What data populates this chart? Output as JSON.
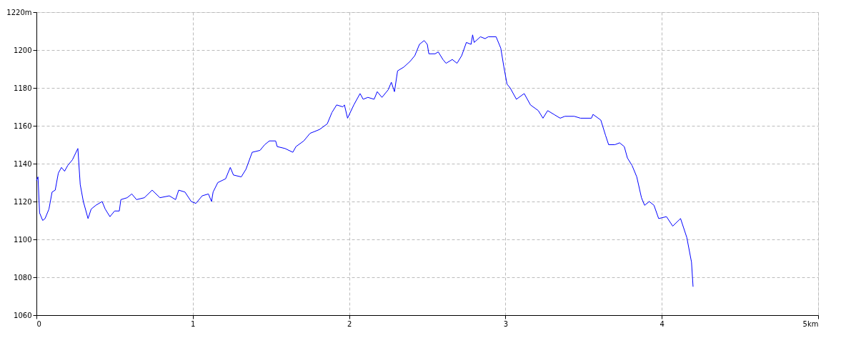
{
  "chart_data": {
    "type": "line",
    "x": [
      0,
      0.01,
      0.02,
      0.04,
      0.055,
      0.08,
      0.1,
      0.12,
      0.14,
      0.16,
      0.18,
      0.2,
      0.23,
      0.265,
      0.28,
      0.3,
      0.33,
      0.35,
      0.38,
      0.42,
      0.44,
      0.47,
      0.5,
      0.53,
      0.54,
      0.58,
      0.61,
      0.64,
      0.69,
      0.74,
      0.79,
      0.85,
      0.89,
      0.91,
      0.95,
      0.99,
      1.02,
      1.06,
      1.1,
      1.12,
      1.13,
      1.16,
      1.21,
      1.24,
      1.26,
      1.31,
      1.34,
      1.38,
      1.43,
      1.46,
      1.49,
      1.53,
      1.54,
      1.59,
      1.64,
      1.66,
      1.71,
      1.75,
      1.81,
      1.86,
      1.89,
      1.92,
      1.96,
      1.97,
      1.99,
      2.03,
      2.07,
      2.09,
      2.12,
      2.16,
      2.18,
      2.21,
      2.25,
      2.27,
      2.29,
      2.31,
      2.35,
      2.39,
      2.42,
      2.45,
      2.48,
      2.5,
      2.51,
      2.55,
      2.57,
      2.6,
      2.62,
      2.66,
      2.69,
      2.72,
      2.75,
      2.78,
      2.79,
      2.8,
      2.84,
      2.87,
      2.89,
      2.94,
      2.97,
      2.99,
      3.01,
      3.03,
      3.07,
      3.12,
      3.16,
      3.21,
      3.24,
      3.27,
      3.31,
      3.35,
      3.38,
      3.44,
      3.48,
      3.55,
      3.56,
      3.61,
      3.64,
      3.66,
      3.7,
      3.73,
      3.76,
      3.78,
      3.81,
      3.84,
      3.87,
      3.89,
      3.92,
      3.95,
      3.98,
      4.03,
      4.07,
      4.12,
      4.16,
      4.19,
      4.2
    ],
    "series": [
      {
        "color": "#0000ff",
        "values": [
          1131,
          1133,
          1114,
          1110,
          1111,
          1116,
          1125,
          1126,
          1135,
          1138,
          1136,
          1139,
          1142,
          1148,
          1129,
          1120,
          1111,
          1116,
          1118,
          1120,
          1116,
          1112,
          1115,
          1115,
          1121,
          1122,
          1124,
          1121,
          1122,
          1126,
          1122,
          1123,
          1121,
          1126,
          1125,
          1120,
          1119,
          1123,
          1124,
          1120,
          1125,
          1130,
          1132,
          1138,
          1134,
          1133,
          1137,
          1146,
          1147,
          1150,
          1152,
          1152,
          1149,
          1148,
          1146,
          1149,
          1152,
          1156,
          1158,
          1161,
          1167,
          1171,
          1170,
          1171,
          1164,
          1171,
          1177,
          1174,
          1175,
          1174,
          1178,
          1175,
          1179,
          1183,
          1178,
          1189,
          1191,
          1194,
          1197,
          1203,
          1205,
          1203,
          1198,
          1198,
          1199,
          1195,
          1193,
          1195,
          1193,
          1197,
          1204,
          1203,
          1208,
          1204,
          1207,
          1206,
          1207,
          1207,
          1201,
          1191,
          1182,
          1180,
          1174,
          1177,
          1171,
          1168,
          1164,
          1168,
          1166,
          1164,
          1165,
          1165,
          1164,
          1164,
          1166,
          1163,
          1155,
          1150,
          1150,
          1151,
          1149,
          1143,
          1139,
          1133,
          1122,
          1118,
          1120,
          1118,
          1111,
          1112,
          1107,
          1111,
          1101,
          1088,
          1075
        ]
      }
    ],
    "xlim": [
      0,
      5
    ],
    "xticks": [
      0,
      1,
      2,
      3,
      4,
      {
        "value": 5,
        "label": "5km"
      }
    ],
    "ylim": [
      1060,
      1220
    ],
    "yticks": [
      1060,
      1080,
      1100,
      1120,
      1140,
      1160,
      1180,
      1200,
      {
        "value": 1220,
        "label": "1220m"
      }
    ],
    "grid": true,
    "line_style": "solid",
    "marker": "none"
  }
}
